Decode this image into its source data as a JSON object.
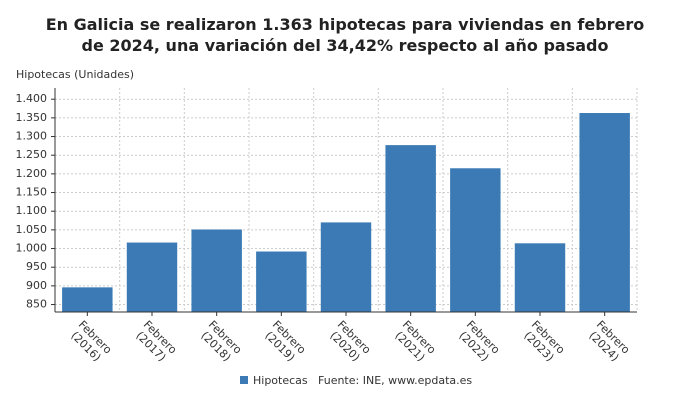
{
  "chart_data": {
    "type": "bar",
    "title": "En Galicia se realizaron 1.363 hipotecas para viviendas en febrero de 2024, una variación del 34,42% respecto al año pasado",
    "y_label": "Hipotecas (Unidades)",
    "source": "Fuente: INE, www.epdata.es",
    "categories": [
      "Febrero\n(2016)",
      "Febrero\n(2017)",
      "Febrero\n(2018)",
      "Febrero\n(2019)",
      "Febrero\n(2020)",
      "Febrero\n(2021)",
      "Febrero\n(2022)",
      "Febrero\n(2023)",
      "Febrero\n(2024)"
    ],
    "series": [
      {
        "name": "Hipotecas",
        "color": "#3b7ab4",
        "values": [
          896,
          1016,
          1051,
          992,
          1070,
          1277,
          1215,
          1014,
          1363
        ]
      }
    ],
    "ylim": [
      830,
      1430
    ],
    "yticks": [
      850,
      900,
      950,
      {
        "value": 1000,
        "label": "1.000"
      },
      {
        "value": 1050,
        "label": "1.050"
      },
      {
        "value": 1100,
        "label": "1.100"
      },
      {
        "value": 1150,
        "label": "1.150"
      },
      {
        "value": 1200,
        "label": "1.200"
      },
      {
        "value": 1250,
        "label": "1.250"
      },
      {
        "value": 1300,
        "label": "1.300"
      },
      {
        "value": 1350,
        "label": "1.350"
      },
      {
        "value": 1400,
        "label": "1.400"
      }
    ],
    "grid": true
  }
}
